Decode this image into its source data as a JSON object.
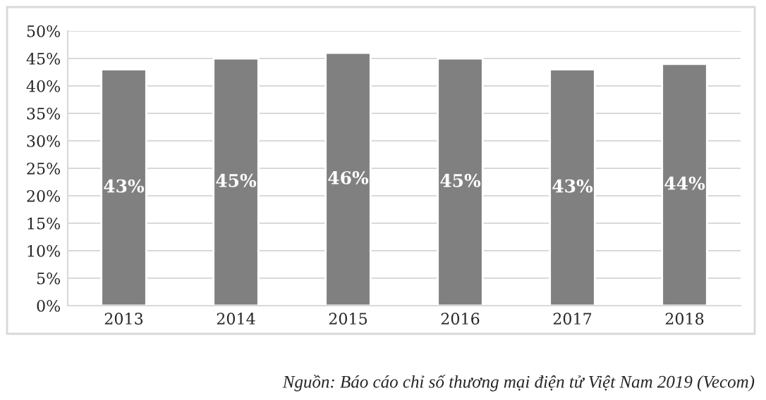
{
  "chart_data": {
    "type": "bar",
    "categories": [
      "2013",
      "2014",
      "2015",
      "2016",
      "2017",
      "2018"
    ],
    "values": [
      43,
      45,
      46,
      45,
      43,
      44
    ],
    "color": "#808080",
    "ylim": [
      0,
      50
    ],
    "yticks": [
      {
        "value": 0,
        "label": "0%"
      },
      {
        "value": 5,
        "label": "5%"
      },
      {
        "value": 10,
        "label": "10%"
      },
      {
        "value": 15,
        "label": "15%"
      },
      {
        "value": 20,
        "label": "20%"
      },
      {
        "value": 25,
        "label": "25%"
      },
      {
        "value": 30,
        "label": "30%"
      },
      {
        "value": 35,
        "label": "35%"
      },
      {
        "value": 40,
        "label": "40%"
      },
      {
        "value": 45,
        "label": "45%"
      },
      {
        "value": 50,
        "label": "50%"
      }
    ],
    "value_labels": [
      "43%",
      "45%",
      "46%",
      "45%",
      "43%",
      "44%"
    ],
    "grid": "y",
    "annotations": [
      "Nguồn: Báo cáo chỉ số thương mại điện tử Việt Nam 2019 (Vecom)"
    ]
  }
}
